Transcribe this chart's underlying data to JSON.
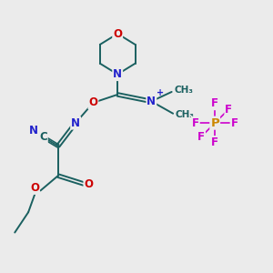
{
  "background_color": "#ebebeb",
  "bond_color": "#1a6060",
  "N_color": "#2222cc",
  "O_color": "#cc0000",
  "C_color": "#1a6060",
  "P_color": "#cc8800",
  "F_color": "#cc00cc",
  "figsize": [
    3.0,
    3.0
  ],
  "dpi": 100,
  "xlim": [
    0,
    10
  ],
  "ylim": [
    0,
    10
  ]
}
